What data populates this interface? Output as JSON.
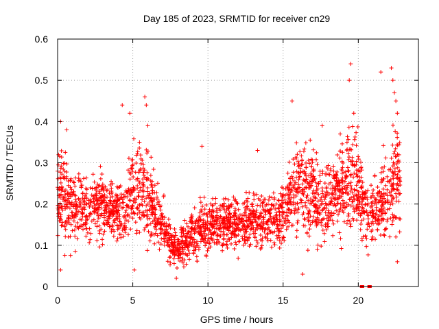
{
  "chart_data": {
    "type": "scatter",
    "title": "Day 185 of 2023, SRMTID for receiver cn29",
    "xlabel": "GPS time / hours",
    "ylabel": "SRMTID / TECUs",
    "xlim": [
      0,
      24
    ],
    "ylim": [
      0,
      0.6
    ],
    "xticks": [
      0,
      5,
      10,
      15,
      20
    ],
    "xtick_labels": [
      "0",
      "5",
      "10",
      "15",
      "20"
    ],
    "yticks": [
      0,
      0.1,
      0.2,
      0.3,
      0.4,
      0.5,
      0.6
    ],
    "ytick_labels": [
      "0",
      "0.1",
      "0.2",
      "0.3",
      "0.4",
      "0.5",
      "0.6"
    ],
    "grid": true,
    "marker": "plus",
    "series": [
      {
        "name": "SRMTID",
        "color": "#ff0000",
        "trend": {
          "x": [
            0,
            0.5,
            1,
            2,
            3,
            4,
            4.5,
            5,
            5.5,
            6,
            6.5,
            7,
            7.5,
            8,
            8.5,
            9,
            9.5,
            10,
            11,
            12,
            13,
            14,
            15,
            15.5,
            16,
            17,
            18,
            18.5,
            19,
            19.5,
            20,
            20.5,
            21,
            21.5,
            22,
            22.5,
            22.8
          ],
          "median": [
            0.22,
            0.21,
            0.19,
            0.2,
            0.2,
            0.18,
            0.18,
            0.22,
            0.25,
            0.22,
            0.18,
            0.15,
            0.11,
            0.09,
            0.11,
            0.13,
            0.14,
            0.15,
            0.15,
            0.15,
            0.16,
            0.16,
            0.17,
            0.21,
            0.24,
            0.22,
            0.2,
            0.22,
            0.24,
            0.26,
            0.25,
            0.18,
            0.17,
            0.2,
            0.22,
            0.28,
            0.22
          ],
          "spread": [
            0.08,
            0.08,
            0.06,
            0.06,
            0.06,
            0.05,
            0.06,
            0.09,
            0.09,
            0.08,
            0.06,
            0.05,
            0.04,
            0.03,
            0.04,
            0.05,
            0.05,
            0.05,
            0.05,
            0.05,
            0.05,
            0.05,
            0.06,
            0.07,
            0.08,
            0.08,
            0.07,
            0.07,
            0.08,
            0.09,
            0.09,
            0.07,
            0.06,
            0.07,
            0.08,
            0.11,
            0.07
          ]
        },
        "outliers": [
          {
            "x": 0.2,
            "y": 0.4
          },
          {
            "x": 0.6,
            "y": 0.38
          },
          {
            "x": 4.3,
            "y": 0.44
          },
          {
            "x": 4.8,
            "y": 0.42
          },
          {
            "x": 5.8,
            "y": 0.46
          },
          {
            "x": 5.9,
            "y": 0.44
          },
          {
            "x": 6.0,
            "y": 0.39
          },
          {
            "x": 9.6,
            "y": 0.34
          },
          {
            "x": 13.3,
            "y": 0.33
          },
          {
            "x": 15.6,
            "y": 0.45
          },
          {
            "x": 17.6,
            "y": 0.39
          },
          {
            "x": 18.8,
            "y": 0.37
          },
          {
            "x": 19.5,
            "y": 0.54
          },
          {
            "x": 19.4,
            "y": 0.5
          },
          {
            "x": 19.7,
            "y": 0.42
          },
          {
            "x": 21.5,
            "y": 0.52
          },
          {
            "x": 22.2,
            "y": 0.53
          },
          {
            "x": 22.3,
            "y": 0.5
          },
          {
            "x": 22.4,
            "y": 0.47
          },
          {
            "x": 22.5,
            "y": 0.45
          },
          {
            "x": 22.6,
            "y": 0.42
          },
          {
            "x": 22.6,
            "y": 0.06
          },
          {
            "x": 22.5,
            "y": 0.12
          },
          {
            "x": 5.1,
            "y": 0.04
          },
          {
            "x": 0.2,
            "y": 0.04
          },
          {
            "x": 16.3,
            "y": 0.03
          },
          {
            "x": 7.9,
            "y": 0.02
          }
        ],
        "zero_markers": [
          {
            "x": 20.2,
            "y": 0
          },
          {
            "x": 20.3,
            "y": 0
          },
          {
            "x": 20.7,
            "y": 0
          },
          {
            "x": 20.8,
            "y": 0
          }
        ]
      }
    ]
  }
}
